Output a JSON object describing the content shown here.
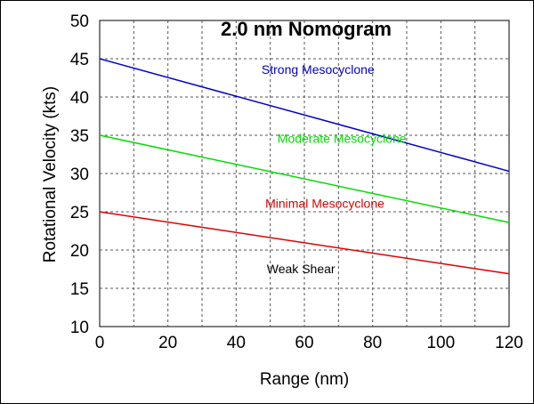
{
  "chart_data": {
    "type": "line",
    "title": "2.0 nm Nomogram",
    "xlabel": "Range (nm)",
    "ylabel": "Rotational Velocity (kts)",
    "xlim": [
      0,
      120
    ],
    "ylim": [
      10,
      50
    ],
    "x_ticks": [
      0,
      10,
      20,
      30,
      40,
      50,
      60,
      70,
      80,
      90,
      100,
      110,
      120
    ],
    "x_tick_labels": [
      "0",
      "20",
      "40",
      "60",
      "80",
      "100",
      "120"
    ],
    "y_ticks": [
      10,
      15,
      20,
      25,
      30,
      35,
      40,
      45,
      50
    ],
    "y_tick_labels": [
      "10",
      "15",
      "20",
      "25",
      "30",
      "35",
      "40",
      "45",
      "50"
    ],
    "grid": true,
    "grid_style": "dashed",
    "series": [
      {
        "x": [
          0,
          120
        ],
        "values": [
          45,
          30.3
        ],
        "color": "#0000cc"
      },
      {
        "x": [
          0,
          120
        ],
        "values": [
          35,
          23.6
        ],
        "color": "#00dd00"
      },
      {
        "x": [
          0,
          120
        ],
        "values": [
          25,
          16.9
        ],
        "color": "#dd0000"
      }
    ],
    "annotations": [
      {
        "text": "Strong Mesocyclone",
        "x": 64,
        "y": 43,
        "color": "#0000cc"
      },
      {
        "text": "Moderate Mesocyclone",
        "x": 71,
        "y": 34,
        "color": "#00dd00"
      },
      {
        "text": "Minimal Mesocyclone",
        "x": 66,
        "y": 25.5,
        "color": "#dd0000"
      },
      {
        "text": "Weak Shear",
        "x": 59,
        "y": 17,
        "color": "#000000"
      }
    ]
  }
}
